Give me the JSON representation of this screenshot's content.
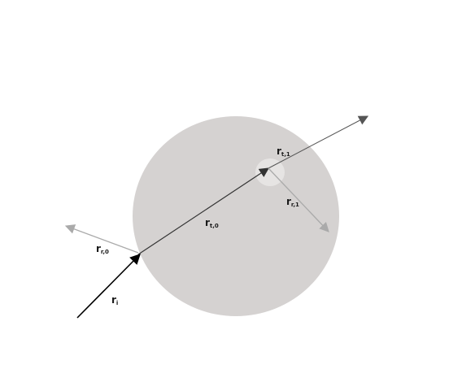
{
  "diagram": {
    "colors": {
      "sphere": "#d5d2d1",
      "highlight": "#e6e4e3",
      "incident": "#000000",
      "transmitted": "#333333",
      "exit_ray": "#555555",
      "reflected": "#aaaaaa"
    },
    "labels": {
      "incident": {
        "symbol": "r",
        "subscript": "i"
      },
      "reflected_0": {
        "symbol": "r",
        "subscript": "r,0"
      },
      "transmitted_0": {
        "symbol": "r",
        "subscript": "t,0"
      },
      "transmitted_1": {
        "symbol": "r",
        "subscript": "t,1"
      },
      "reflected_1": {
        "symbol": "r",
        "subscript": "r,1"
      }
    }
  }
}
